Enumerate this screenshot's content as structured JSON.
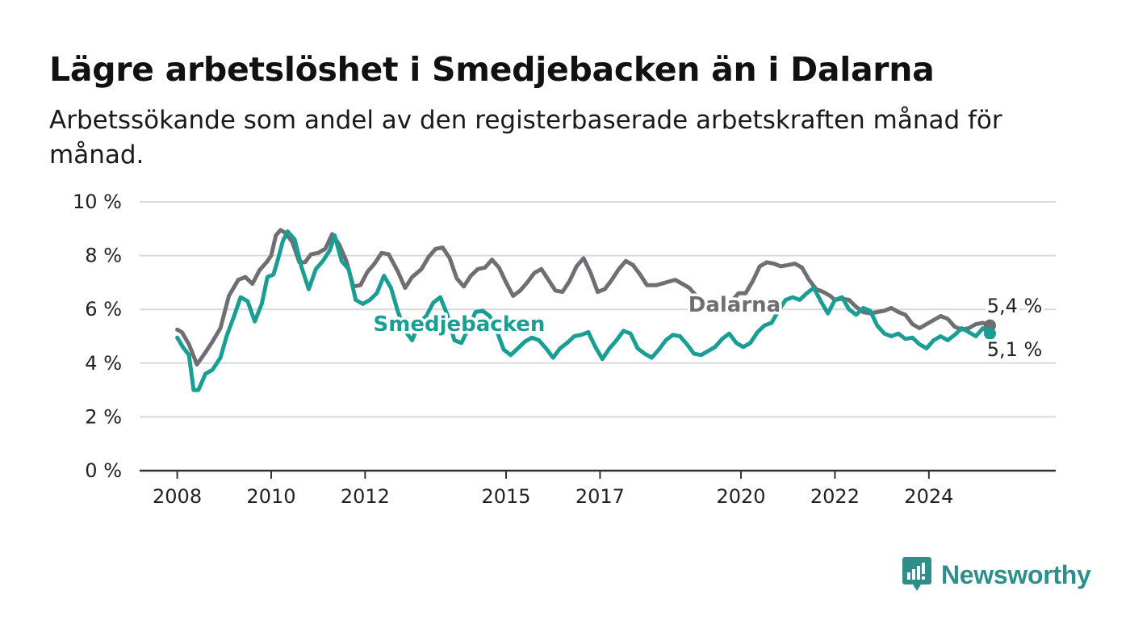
{
  "header": {
    "title": "Lägre arbetslöshet i Smedjebacken än i Dalarna",
    "subtitle": "Arbetssökande som andel av den registerbaserade arbetskraften månad för månad."
  },
  "brand": {
    "name": "Newsworthy",
    "color": "#2f8d8b"
  },
  "chart_data": {
    "type": "line",
    "title": "Lägre arbetslöshet i Smedjebacken än i Dalarna",
    "ylim": [
      0,
      10
    ],
    "xlim": [
      2007.2,
      2026.7
    ],
    "y_ticks": [
      0,
      2,
      4,
      6,
      8,
      10
    ],
    "y_tick_labels": [
      "0 %",
      "2 %",
      "4 %",
      "6 %",
      "8 %",
      "10 %"
    ],
    "x_ticks": [
      2008,
      2010,
      2012,
      2015,
      2017,
      2020,
      2022,
      2024
    ],
    "x_tick_labels": [
      "2008",
      "2010",
      "2012",
      "2015",
      "2017",
      "2020",
      "2022",
      "2024"
    ],
    "grid": true,
    "series": [
      {
        "name": "Dalarna",
        "color": "#6e6e73",
        "end_label": "5,4 %",
        "points": [
          [
            2008.0,
            5.25
          ],
          [
            2008.1,
            5.15
          ],
          [
            2008.25,
            4.7
          ],
          [
            2008.42,
            3.95
          ],
          [
            2008.6,
            4.4
          ],
          [
            2008.75,
            4.8
          ],
          [
            2008.92,
            5.3
          ],
          [
            2009.1,
            6.5
          ],
          [
            2009.3,
            7.1
          ],
          [
            2009.45,
            7.2
          ],
          [
            2009.6,
            6.95
          ],
          [
            2009.75,
            7.45
          ],
          [
            2009.9,
            7.75
          ],
          [
            2010.0,
            8.0
          ],
          [
            2010.1,
            8.75
          ],
          [
            2010.2,
            8.95
          ],
          [
            2010.3,
            8.85
          ],
          [
            2010.45,
            8.5
          ],
          [
            2010.6,
            7.75
          ],
          [
            2010.72,
            7.75
          ],
          [
            2010.85,
            8.05
          ],
          [
            2011.0,
            8.1
          ],
          [
            2011.15,
            8.25
          ],
          [
            2011.3,
            8.8
          ],
          [
            2011.45,
            8.4
          ],
          [
            2011.6,
            7.8
          ],
          [
            2011.75,
            6.85
          ],
          [
            2011.9,
            6.9
          ],
          [
            2012.05,
            7.4
          ],
          [
            2012.2,
            7.7
          ],
          [
            2012.35,
            8.1
          ],
          [
            2012.5,
            8.05
          ],
          [
            2012.7,
            7.4
          ],
          [
            2012.85,
            6.8
          ],
          [
            2013.0,
            7.2
          ],
          [
            2013.2,
            7.5
          ],
          [
            2013.35,
            7.95
          ],
          [
            2013.5,
            8.25
          ],
          [
            2013.65,
            8.3
          ],
          [
            2013.8,
            7.9
          ],
          [
            2013.95,
            7.15
          ],
          [
            2014.1,
            6.85
          ],
          [
            2014.25,
            7.25
          ],
          [
            2014.4,
            7.5
          ],
          [
            2014.55,
            7.55
          ],
          [
            2014.7,
            7.85
          ],
          [
            2014.85,
            7.55
          ],
          [
            2015.0,
            7.0
          ],
          [
            2015.15,
            6.5
          ],
          [
            2015.3,
            6.7
          ],
          [
            2015.45,
            7.0
          ],
          [
            2015.6,
            7.35
          ],
          [
            2015.75,
            7.5
          ],
          [
            2015.9,
            7.1
          ],
          [
            2016.05,
            6.7
          ],
          [
            2016.2,
            6.65
          ],
          [
            2016.35,
            7.05
          ],
          [
            2016.5,
            7.6
          ],
          [
            2016.65,
            7.9
          ],
          [
            2016.8,
            7.35
          ],
          [
            2016.95,
            6.65
          ],
          [
            2017.1,
            6.75
          ],
          [
            2017.25,
            7.1
          ],
          [
            2017.4,
            7.5
          ],
          [
            2017.55,
            7.8
          ],
          [
            2017.7,
            7.65
          ],
          [
            2017.85,
            7.3
          ],
          [
            2018.0,
            6.9
          ],
          [
            2018.2,
            6.9
          ],
          [
            2018.4,
            7.0
          ],
          [
            2018.6,
            7.1
          ],
          [
            2018.75,
            6.95
          ],
          [
            2018.9,
            6.8
          ],
          [
            2019.05,
            6.5
          ],
          [
            2019.2,
            6.3
          ],
          [
            2019.35,
            6.0
          ],
          [
            2019.5,
            5.9
          ],
          [
            2019.65,
            6.05
          ],
          [
            2019.8,
            6.3
          ],
          [
            2019.95,
            6.6
          ],
          [
            2020.1,
            6.6
          ],
          [
            2020.25,
            7.05
          ],
          [
            2020.4,
            7.6
          ],
          [
            2020.55,
            7.75
          ],
          [
            2020.7,
            7.7
          ],
          [
            2020.85,
            7.6
          ],
          [
            2021.0,
            7.65
          ],
          [
            2021.15,
            7.7
          ],
          [
            2021.3,
            7.55
          ],
          [
            2021.45,
            7.1
          ],
          [
            2021.6,
            6.75
          ],
          [
            2021.75,
            6.65
          ],
          [
            2021.9,
            6.5
          ],
          [
            2022.0,
            6.35
          ],
          [
            2022.15,
            6.4
          ],
          [
            2022.3,
            6.35
          ],
          [
            2022.45,
            6.1
          ],
          [
            2022.6,
            5.9
          ],
          [
            2022.75,
            5.85
          ],
          [
            2022.9,
            5.9
          ],
          [
            2023.05,
            5.95
          ],
          [
            2023.2,
            6.05
          ],
          [
            2023.35,
            5.9
          ],
          [
            2023.5,
            5.8
          ],
          [
            2023.65,
            5.45
          ],
          [
            2023.8,
            5.3
          ],
          [
            2023.95,
            5.45
          ],
          [
            2024.1,
            5.6
          ],
          [
            2024.25,
            5.75
          ],
          [
            2024.4,
            5.65
          ],
          [
            2024.55,
            5.35
          ],
          [
            2024.7,
            5.25
          ],
          [
            2024.85,
            5.3
          ],
          [
            2025.0,
            5.45
          ],
          [
            2025.15,
            5.5
          ],
          [
            2025.3,
            5.4
          ]
        ]
      },
      {
        "name": "Smedjebacken",
        "color": "#1a9e94",
        "end_label": "5,1 %",
        "points": [
          [
            2008.0,
            4.95
          ],
          [
            2008.12,
            4.6
          ],
          [
            2008.25,
            4.3
          ],
          [
            2008.35,
            3.0
          ],
          [
            2008.45,
            3.0
          ],
          [
            2008.6,
            3.6
          ],
          [
            2008.75,
            3.75
          ],
          [
            2008.92,
            4.2
          ],
          [
            2009.05,
            5.0
          ],
          [
            2009.2,
            5.7
          ],
          [
            2009.35,
            6.45
          ],
          [
            2009.5,
            6.3
          ],
          [
            2009.65,
            5.55
          ],
          [
            2009.8,
            6.2
          ],
          [
            2009.92,
            7.2
          ],
          [
            2010.05,
            7.3
          ],
          [
            2010.15,
            7.9
          ],
          [
            2010.25,
            8.55
          ],
          [
            2010.35,
            8.9
          ],
          [
            2010.5,
            8.6
          ],
          [
            2010.65,
            7.55
          ],
          [
            2010.8,
            6.75
          ],
          [
            2010.95,
            7.5
          ],
          [
            2011.1,
            7.8
          ],
          [
            2011.25,
            8.2
          ],
          [
            2011.35,
            8.75
          ],
          [
            2011.5,
            7.8
          ],
          [
            2011.65,
            7.5
          ],
          [
            2011.8,
            6.35
          ],
          [
            2011.95,
            6.2
          ],
          [
            2012.1,
            6.35
          ],
          [
            2012.25,
            6.6
          ],
          [
            2012.4,
            7.25
          ],
          [
            2012.55,
            6.8
          ],
          [
            2012.7,
            5.9
          ],
          [
            2012.85,
            5.2
          ],
          [
            2013.0,
            4.85
          ],
          [
            2013.15,
            5.5
          ],
          [
            2013.3,
            5.75
          ],
          [
            2013.45,
            6.25
          ],
          [
            2013.6,
            6.45
          ],
          [
            2013.75,
            5.8
          ],
          [
            2013.9,
            4.85
          ],
          [
            2014.05,
            4.75
          ],
          [
            2014.2,
            5.3
          ],
          [
            2014.35,
            5.9
          ],
          [
            2014.5,
            5.95
          ],
          [
            2014.65,
            5.75
          ],
          [
            2014.8,
            5.2
          ],
          [
            2014.95,
            4.5
          ],
          [
            2015.1,
            4.3
          ],
          [
            2015.25,
            4.55
          ],
          [
            2015.4,
            4.8
          ],
          [
            2015.55,
            4.95
          ],
          [
            2015.7,
            4.85
          ],
          [
            2015.85,
            4.55
          ],
          [
            2016.0,
            4.2
          ],
          [
            2016.15,
            4.55
          ],
          [
            2016.3,
            4.75
          ],
          [
            2016.45,
            5.0
          ],
          [
            2016.6,
            5.05
          ],
          [
            2016.75,
            5.15
          ],
          [
            2016.9,
            4.6
          ],
          [
            2017.05,
            4.15
          ],
          [
            2017.2,
            4.55
          ],
          [
            2017.35,
            4.85
          ],
          [
            2017.5,
            5.2
          ],
          [
            2017.65,
            5.1
          ],
          [
            2017.8,
            4.55
          ],
          [
            2017.95,
            4.35
          ],
          [
            2018.1,
            4.2
          ],
          [
            2018.25,
            4.5
          ],
          [
            2018.4,
            4.85
          ],
          [
            2018.55,
            5.05
          ],
          [
            2018.7,
            5.0
          ],
          [
            2018.85,
            4.7
          ],
          [
            2019.0,
            4.35
          ],
          [
            2019.15,
            4.3
          ],
          [
            2019.3,
            4.45
          ],
          [
            2019.45,
            4.6
          ],
          [
            2019.6,
            4.9
          ],
          [
            2019.75,
            5.1
          ],
          [
            2019.9,
            4.75
          ],
          [
            2020.05,
            4.6
          ],
          [
            2020.2,
            4.75
          ],
          [
            2020.35,
            5.15
          ],
          [
            2020.5,
            5.4
          ],
          [
            2020.65,
            5.5
          ],
          [
            2020.8,
            5.95
          ],
          [
            2020.95,
            6.35
          ],
          [
            2021.1,
            6.45
          ],
          [
            2021.25,
            6.35
          ],
          [
            2021.4,
            6.6
          ],
          [
            2021.55,
            6.8
          ],
          [
            2021.7,
            6.3
          ],
          [
            2021.85,
            5.85
          ],
          [
            2022.0,
            6.35
          ],
          [
            2022.15,
            6.45
          ],
          [
            2022.3,
            6.0
          ],
          [
            2022.45,
            5.8
          ],
          [
            2022.6,
            6.05
          ],
          [
            2022.75,
            5.95
          ],
          [
            2022.9,
            5.4
          ],
          [
            2023.05,
            5.1
          ],
          [
            2023.2,
            5.0
          ],
          [
            2023.35,
            5.1
          ],
          [
            2023.5,
            4.9
          ],
          [
            2023.65,
            4.95
          ],
          [
            2023.8,
            4.7
          ],
          [
            2023.95,
            4.55
          ],
          [
            2024.1,
            4.85
          ],
          [
            2024.25,
            5.0
          ],
          [
            2024.4,
            4.85
          ],
          [
            2024.55,
            5.05
          ],
          [
            2024.7,
            5.3
          ],
          [
            2024.85,
            5.15
          ],
          [
            2025.0,
            5.0
          ],
          [
            2025.15,
            5.3
          ],
          [
            2025.3,
            5.1
          ]
        ]
      }
    ]
  }
}
